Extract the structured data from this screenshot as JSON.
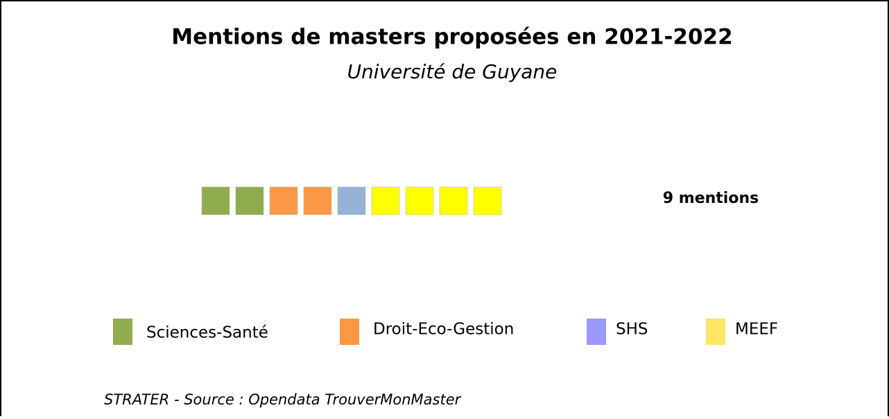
{
  "chart_data": {
    "type": "waffle",
    "title": "Mentions de masters proposées en 2021-2022",
    "subtitle": "Université de Guyane",
    "total_label": "9 mentions",
    "series": [
      {
        "name": "Sciences-Santé",
        "color": "#8fac4e",
        "legend_color": "#8fac4e",
        "values": 2
      },
      {
        "name": "Droit-Eco-Gestion",
        "color": "#fb9845",
        "legend_color": "#fb9845",
        "values": 2
      },
      {
        "name": "SHS",
        "color": "#95b3d7",
        "legend_color": "#9999ff",
        "values": 1
      },
      {
        "name": "MEEF",
        "color": "#ffff00",
        "legend_color": "#ffe566",
        "values": 4
      }
    ],
    "source": "STRATER - Source : Opendata TrouverMonMaster"
  }
}
